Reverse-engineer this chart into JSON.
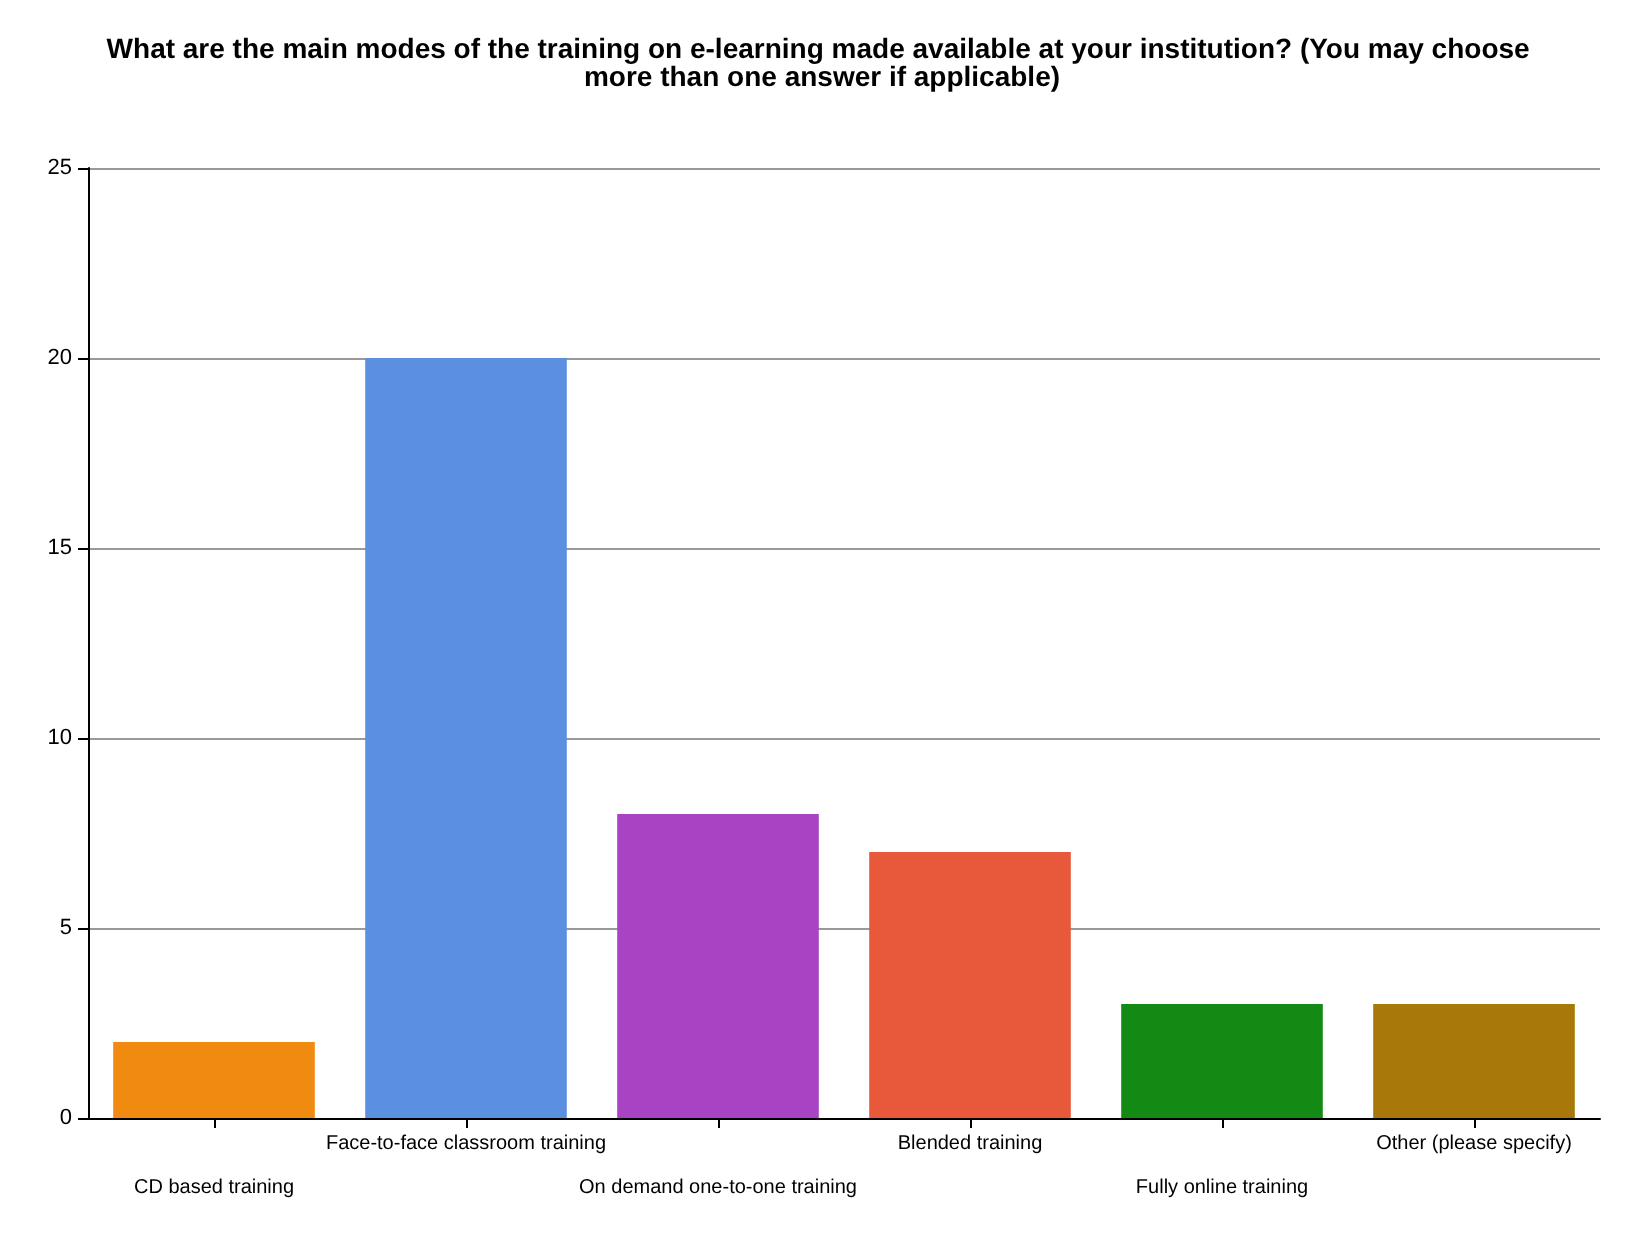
{
  "chart_data": {
    "type": "bar",
    "title": "What are the main modes of the training on e-learning made available at your institution? (You may choose more than one answer if applicable)",
    "categories": [
      "CD based training",
      "Face-to-face classroom training",
      "On demand one-to-one training",
      "Blended training",
      "Fully online training",
      "Other (please specify)"
    ],
    "values": [
      2,
      20,
      8,
      7,
      3,
      3
    ],
    "colors": [
      "#f08a10",
      "#5b8fe0",
      "#a844c4",
      "#e8583a",
      "#138a13",
      "#a8780a"
    ],
    "ylim": [
      0,
      25
    ],
    "yticks": [
      0,
      5,
      10,
      15,
      20,
      25
    ],
    "grid": "y"
  }
}
